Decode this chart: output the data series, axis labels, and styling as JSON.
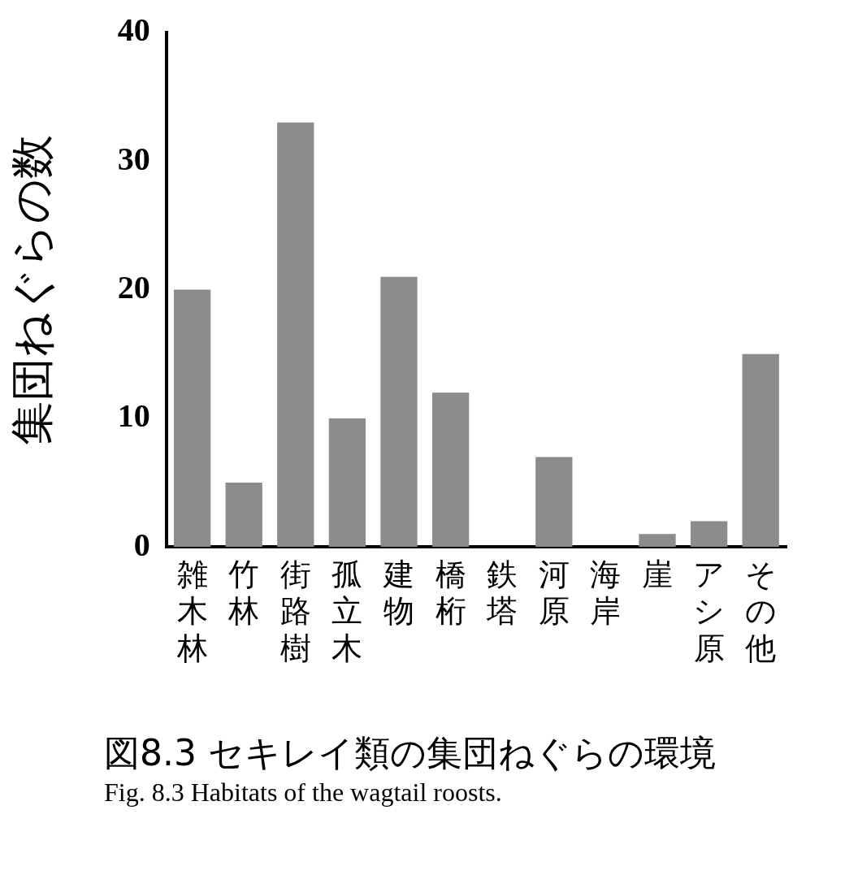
{
  "chart_data": {
    "type": "bar",
    "title": "図8.3 セキレイ類の集団ねぐらの環境",
    "subtitle": "Fig. 8.3 Habitats of the wagtail roosts.",
    "ylabel": "集団ねぐらの数",
    "categories": [
      "雑木林",
      "竹林",
      "街路樹",
      "孤立木",
      "建物",
      "橋桁",
      "鉄塔",
      "河原",
      "海岸",
      "崖",
      "アシ原",
      "その他"
    ],
    "values": [
      20,
      5,
      33,
      10,
      21,
      12,
      0,
      7,
      0,
      1,
      2,
      15
    ],
    "color": "#8c8c8c",
    "ylim": [
      0,
      40
    ],
    "yticks": [
      0,
      10,
      20,
      30,
      40
    ],
    "grid": false,
    "legend": false
  }
}
